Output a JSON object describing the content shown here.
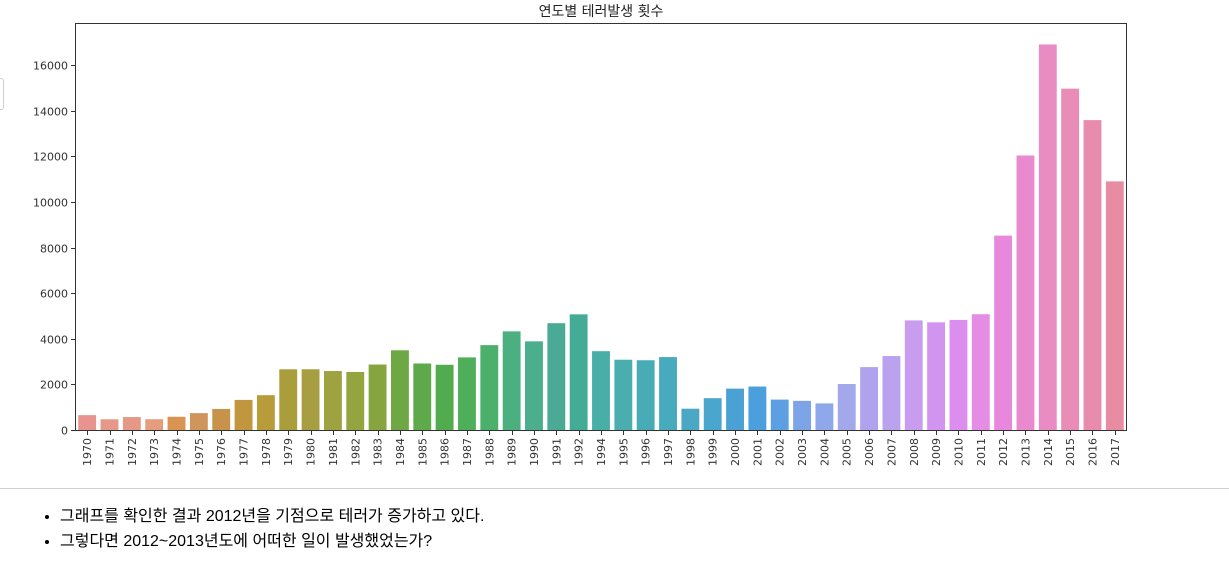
{
  "chart_data": {
    "type": "bar",
    "title": "연도별 테러발생 횟수",
    "xlabel": "",
    "ylabel": "",
    "categories": [
      "1970",
      "1971",
      "1972",
      "1973",
      "1974",
      "1975",
      "1976",
      "1977",
      "1978",
      "1979",
      "1980",
      "1981",
      "1982",
      "1983",
      "1984",
      "1985",
      "1986",
      "1987",
      "1988",
      "1989",
      "1990",
      "1991",
      "1992",
      "1994",
      "1995",
      "1996",
      "1997",
      "1998",
      "1999",
      "2000",
      "2001",
      "2002",
      "2003",
      "2004",
      "2005",
      "2006",
      "2007",
      "2008",
      "2009",
      "2010",
      "2011",
      "2012",
      "2013",
      "2014",
      "2015",
      "2016",
      "2017"
    ],
    "values": [
      651,
      471,
      568,
      473,
      581,
      740,
      923,
      1319,
      1526,
      2662,
      2662,
      2586,
      2544,
      2870,
      3495,
      2915,
      2860,
      3183,
      3721,
      4324,
      3887,
      4683,
      5071,
      3456,
      3081,
      3058,
      3197,
      934,
      1395,
      1814,
      1906,
      1333,
      1278,
      1166,
      2017,
      2758,
      3242,
      4805,
      4721,
      4826,
      5076,
      8522,
      12036,
      16903,
      14965,
      13587,
      10900
    ],
    "colors": [
      "#e8938e",
      "#e6988a",
      "#e59886",
      "#e49e7d",
      "#d99454",
      "#cf955a",
      "#c7934a",
      "#c0963f",
      "#b89c3a",
      "#aa9d3b",
      "#a69e40",
      "#9ea240",
      "#94a43e",
      "#86a53f",
      "#6ea844",
      "#5eaa4a",
      "#52ac4f",
      "#4fae5a",
      "#4bb06c",
      "#4caf7f",
      "#4bae8d",
      "#4aaa96",
      "#44ac96",
      "#49aea7",
      "#4aaeae",
      "#47acb6",
      "#47aabd",
      "#4aa8c4",
      "#4aa6cc",
      "#4aa2d4",
      "#4a9fdc",
      "#5c9fe2",
      "#7ea4e8",
      "#8fa8ea",
      "#a2a8ea",
      "#b0a2ec",
      "#bba2ef",
      "#c89df0",
      "#d295ef",
      "#db8eee",
      "#e58de5",
      "#e888dc",
      "#e98acf",
      "#e98cc4",
      "#e98cb8",
      "#e88cad",
      "#e78ca2"
    ],
    "ylim": [
      0,
      17800
    ],
    "yticks": [
      0,
      2000,
      4000,
      6000,
      8000,
      10000,
      12000,
      14000,
      16000
    ],
    "grid": false,
    "legend": "none"
  },
  "notes": [
    "그래프를 확인한 결과 2012년을 기점으로 테러가 증가하고 있다.",
    "그렇다면 2012~2013년도에 어떠한 일이 발생했었는가?"
  ]
}
